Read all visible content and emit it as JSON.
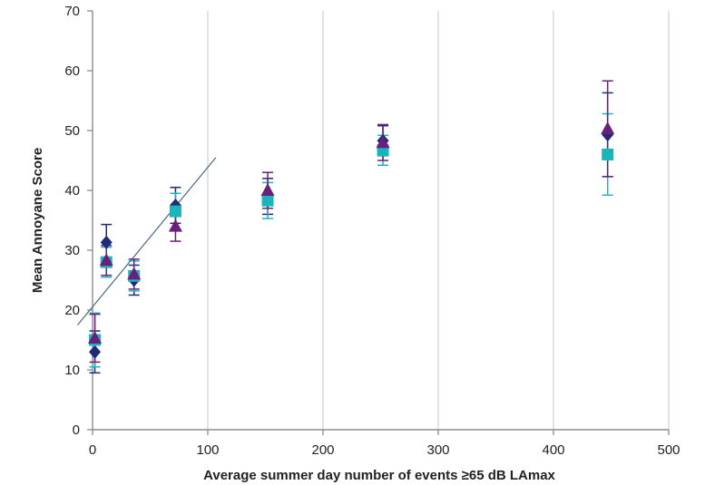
{
  "chart_data": {
    "type": "scatter",
    "title": "",
    "xlabel": "Average summer day number of events ≥65 dB LAmax",
    "ylabel": "Mean Annoyane Score",
    "xlim": [
      0,
      500
    ],
    "ylim": [
      0,
      70
    ],
    "xticks": [
      0,
      100,
      200,
      300,
      400,
      500
    ],
    "yticks": [
      0,
      10,
      20,
      30,
      40,
      50,
      60,
      70
    ],
    "grid": "vertical",
    "legend": "none",
    "series": [
      {
        "marker": "diamond",
        "color": "#1f2a7a",
        "points": [
          {
            "x": 2,
            "y": 13.0,
            "err": 3.5
          },
          {
            "x": 12,
            "y": 31.3,
            "err": 3.0
          },
          {
            "x": 36,
            "y": 25.0,
            "err": 2.5
          },
          {
            "x": 72,
            "y": 37.5,
            "err": 3.0
          },
          {
            "x": 152,
            "y": 39.0,
            "err": 3.0
          },
          {
            "x": 252,
            "y": 48.3,
            "err": 2.5
          },
          {
            "x": 447,
            "y": 49.3,
            "err": 7.0
          }
        ]
      },
      {
        "marker": "square",
        "color": "#19b5bd",
        "points": [
          {
            "x": 2,
            "y": 15.0,
            "err": 4.5
          },
          {
            "x": 12,
            "y": 28.0,
            "err": 2.5
          },
          {
            "x": 36,
            "y": 25.7,
            "err": 2.5
          },
          {
            "x": 72,
            "y": 36.5,
            "err": 3.0
          },
          {
            "x": 152,
            "y": 38.3,
            "err": 3.0
          },
          {
            "x": 252,
            "y": 46.7,
            "err": 2.5
          },
          {
            "x": 447,
            "y": 46.0,
            "err": 6.8
          }
        ]
      },
      {
        "marker": "triangle",
        "color": "#6b1f7c",
        "points": [
          {
            "x": 2,
            "y": 15.3,
            "err": 4.0
          },
          {
            "x": 12,
            "y": 28.3,
            "err": 2.5
          },
          {
            "x": 36,
            "y": 26.0,
            "err": 2.5
          },
          {
            "x": 72,
            "y": 34.0,
            "err": 2.5
          },
          {
            "x": 152,
            "y": 40.0,
            "err": 3.0
          },
          {
            "x": 252,
            "y": 48.0,
            "err": 3.0
          },
          {
            "x": 447,
            "y": 50.3,
            "err": 8.0
          }
        ]
      }
    ],
    "trendline": {
      "color": "#4a6785",
      "from": {
        "x": -13,
        "y": 17.5
      },
      "to": {
        "x": 107,
        "y": 45.5
      }
    }
  }
}
